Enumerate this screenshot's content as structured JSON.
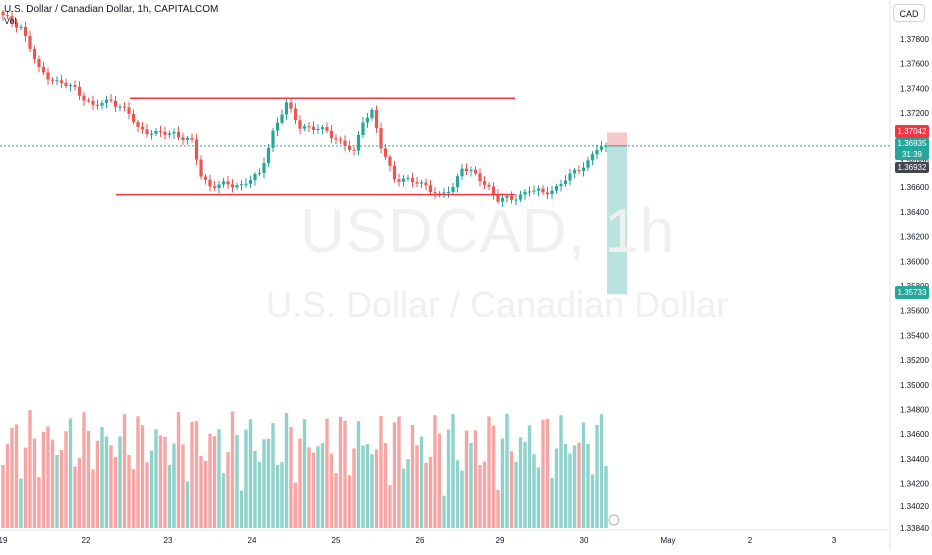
{
  "header": {
    "title": "U.S. Dollar / Canadian Dollar, 1h, CAPITALCOM",
    "vol_label": "Vol",
    "currency_button": "CAD"
  },
  "watermark": {
    "symbol": "USDCAD, 1h",
    "name": "U.S. Dollar / Canadian Dollar"
  },
  "colors": {
    "up": "#26a69a",
    "down": "#ef5350",
    "up_volume": "#8fd1cb",
    "down_volume": "#f5a5a3",
    "level_line": "#f23645",
    "last_price_line": "#26a69a",
    "target_zone": "#b2dfdb",
    "stop_zone": "#f7c1c1"
  },
  "price_tags": {
    "stop": "1.37042",
    "last": "1.36935",
    "countdown": "31:39",
    "marker": "1.36932",
    "target": "1.35733"
  },
  "chart_data": {
    "type": "candlestick",
    "symbol": "USDCAD",
    "interval": "1h",
    "y_axis": {
      "ticks": [
        "1.37800",
        "1.37600",
        "1.37400",
        "1.37200",
        "1.37000",
        "1.36800",
        "1.36600",
        "1.36400",
        "1.36200",
        "1.36000",
        "1.35800",
        "1.35600",
        "1.35400",
        "1.35200",
        "1.35000",
        "1.34800",
        "1.34600",
        "1.34400",
        "1.34200",
        "1.34020",
        "1.33840"
      ],
      "range": [
        1.3378,
        1.3813
      ]
    },
    "x_axis": {
      "labels": [
        "19",
        "22",
        "23",
        "24",
        "25",
        "26",
        "29",
        "30",
        "May",
        "2",
        "3"
      ]
    },
    "close_path": [
      [
        0,
        1.3798
      ],
      [
        4,
        1.379
      ],
      [
        8,
        1.3755
      ],
      [
        12,
        1.3745
      ],
      [
        16,
        1.374
      ],
      [
        20,
        1.3725
      ],
      [
        24,
        1.3731
      ],
      [
        28,
        1.3719
      ],
      [
        30,
        1.3708
      ],
      [
        34,
        1.3703
      ],
      [
        38,
        1.3704
      ],
      [
        42,
        1.3696
      ],
      [
        44,
        1.367
      ],
      [
        46,
        1.3661
      ],
      [
        50,
        1.3662
      ],
      [
        53,
        1.3662
      ],
      [
        57,
        1.367
      ],
      [
        60,
        1.3705
      ],
      [
        63,
        1.3727
      ],
      [
        66,
        1.371
      ],
      [
        69,
        1.3707
      ],
      [
        72,
        1.3706
      ],
      [
        75,
        1.3696
      ],
      [
        78,
        1.3688
      ],
      [
        80,
        1.3715
      ],
      [
        82,
        1.3721
      ],
      [
        84,
        1.3692
      ],
      [
        87,
        1.3668
      ],
      [
        90,
        1.3665
      ],
      [
        94,
        1.3662
      ],
      [
        97,
        1.3652
      ],
      [
        100,
        1.366
      ],
      [
        102,
        1.3677
      ],
      [
        105,
        1.3669
      ],
      [
        108,
        1.366
      ],
      [
        110,
        1.365
      ],
      [
        113,
        1.365
      ],
      [
        117,
        1.3658
      ],
      [
        120,
        1.3655
      ],
      [
        123,
        1.366
      ],
      [
        126,
        1.3669
      ],
      [
        130,
        1.3681
      ],
      [
        132,
        1.3691
      ],
      [
        134,
        1.3693
      ]
    ],
    "levels": [
      {
        "name": "resistance",
        "value": 1.3732
      },
      {
        "name": "support",
        "value": 1.3654
      }
    ],
    "position": {
      "type": "short",
      "entry": 1.36935,
      "stop": 1.37042,
      "target": 1.35733
    },
    "last_price": 1.36935
  }
}
